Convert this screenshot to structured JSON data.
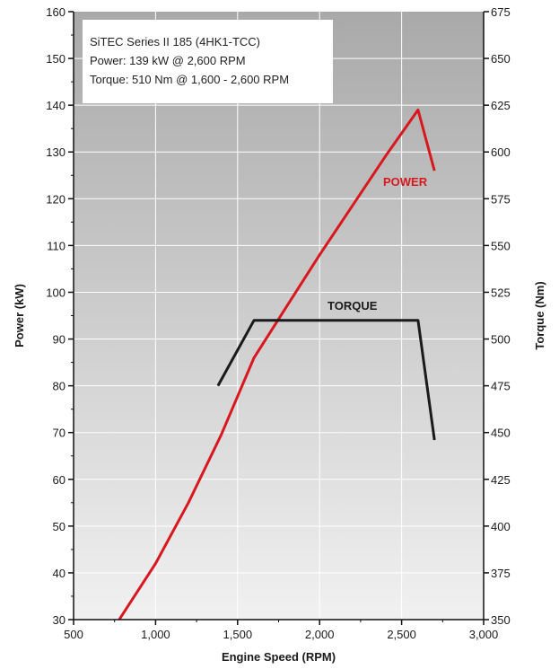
{
  "chart_data": {
    "type": "line",
    "xlabel": "Engine Speed (RPM)",
    "ylabel_left": "Power (kW)",
    "ylabel_right": "Torque (Nm)",
    "xlim": [
      500,
      3000
    ],
    "ylim_left": [
      30,
      160
    ],
    "ylim_right": [
      350,
      675
    ],
    "x_ticks": [
      500,
      1000,
      1500,
      2000,
      2500,
      3000
    ],
    "x_tick_labels": [
      "500",
      "1,000",
      "1,500",
      "2,000",
      "2,500",
      "3,000"
    ],
    "y_left_ticks": [
      30,
      40,
      50,
      60,
      70,
      80,
      90,
      100,
      110,
      120,
      130,
      140,
      150,
      160
    ],
    "y_left_tick_labels": [
      "30",
      "40",
      "50",
      "60",
      "70",
      "80",
      "90",
      "100",
      "110",
      "120",
      "130",
      "140",
      "150",
      "160"
    ],
    "y_right_ticks": [
      350,
      375,
      400,
      425,
      450,
      475,
      500,
      525,
      550,
      575,
      600,
      625,
      650,
      675
    ],
    "y_right_tick_labels": [
      "350",
      "375",
      "400",
      "425",
      "450",
      "475",
      "500",
      "525",
      "550",
      "575",
      "600",
      "625",
      "650",
      "675"
    ],
    "grid": true,
    "annotation_lines": [
      "SiTEC Series II 185 (4HK1-TCC)",
      "Power: 139 kW @ 2,600 RPM",
      "Torque: 510 Nm @ 1,600 - 2,600 RPM"
    ],
    "series": [
      {
        "name": "POWER",
        "axis": "left",
        "color": "#d7191f",
        "points": [
          [
            760,
            29
          ],
          [
            1000,
            42
          ],
          [
            1200,
            55
          ],
          [
            1400,
            69.5
          ],
          [
            1600,
            86
          ],
          [
            1800,
            97
          ],
          [
            2000,
            108
          ],
          [
            2200,
            118.5
          ],
          [
            2400,
            129
          ],
          [
            2600,
            139
          ],
          [
            2700,
            126
          ]
        ]
      },
      {
        "name": "TORQUE",
        "axis": "right",
        "color": "#1a1a1a",
        "points": [
          [
            1380,
            475
          ],
          [
            1600,
            510
          ],
          [
            2000,
            510
          ],
          [
            2600,
            510
          ],
          [
            2700,
            446
          ]
        ]
      }
    ],
    "series_label_colors": {
      "POWER": "#d7191f",
      "TORQUE": "#1a1a1a"
    }
  }
}
